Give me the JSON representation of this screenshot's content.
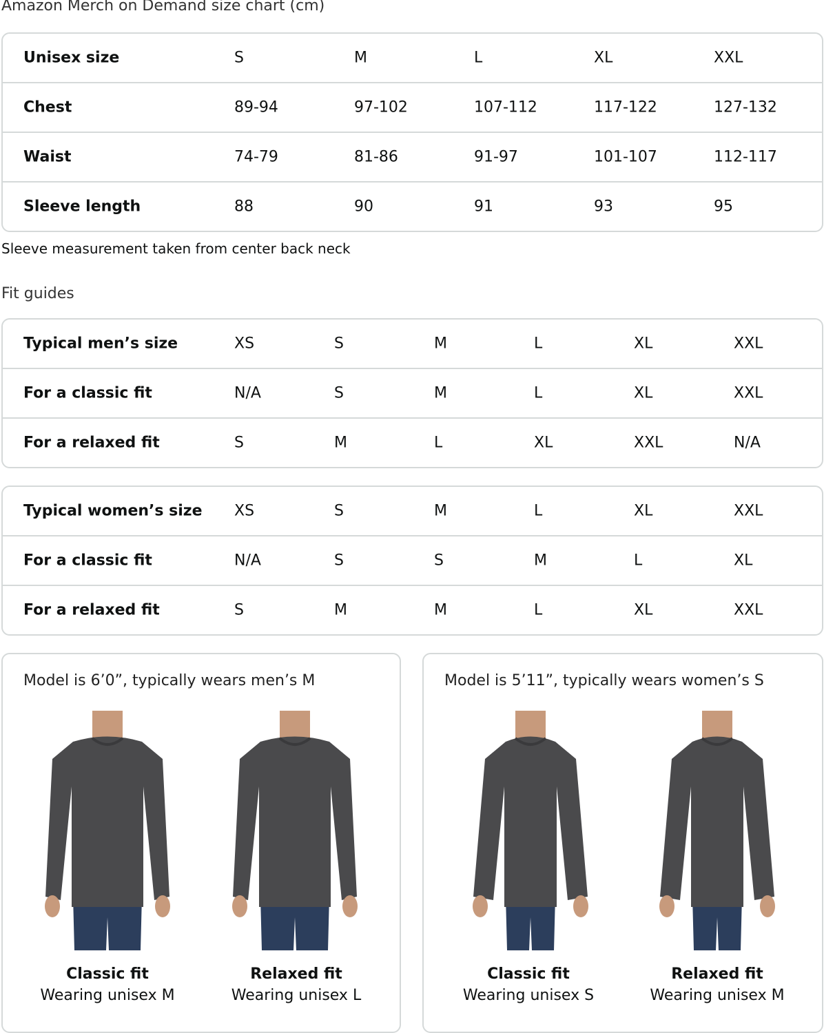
{
  "title": "Amazon Merch on Demand size chart (cm)",
  "size_chart": {
    "rows": [
      {
        "label": "Unisex size",
        "values": [
          "S",
          "M",
          "L",
          "XL",
          "XXL"
        ]
      },
      {
        "label": "Chest",
        "values": [
          "89-94",
          "97-102",
          "107-112",
          "117-122",
          "127-132"
        ]
      },
      {
        "label": "Waist",
        "values": [
          "74-79",
          "81-86",
          "91-97",
          "101-107",
          "112-117"
        ]
      },
      {
        "label": "Sleeve length",
        "values": [
          "88",
          "90",
          "91",
          "93",
          "95"
        ]
      }
    ]
  },
  "note": "Sleeve measurement taken from center back neck",
  "fit_guides_title": "Fit guides",
  "mens_fit": {
    "rows": [
      {
        "label": "Typical men’s size",
        "values": [
          "XS",
          "S",
          "M",
          "L",
          "XL",
          "XXL"
        ]
      },
      {
        "label": "For a classic fit",
        "values": [
          "N/A",
          "S",
          "M",
          "L",
          "XL",
          "XXL"
        ]
      },
      {
        "label": "For a relaxed fit",
        "values": [
          "S",
          "M",
          "L",
          "XL",
          "XXL",
          "N/A"
        ]
      }
    ]
  },
  "womens_fit": {
    "rows": [
      {
        "label": "Typical women’s size",
        "values": [
          "XS",
          "S",
          "M",
          "L",
          "XL",
          "XXL"
        ]
      },
      {
        "label": "For a classic fit",
        "values": [
          "N/A",
          "S",
          "S",
          "M",
          "L",
          "XL"
        ]
      },
      {
        "label": "For a relaxed fit",
        "values": [
          "S",
          "M",
          "M",
          "L",
          "XL",
          "XXL"
        ]
      }
    ]
  },
  "models": [
    {
      "title": "Model is 6’0”, typically wears men’s M",
      "photos": [
        {
          "fit": "Classic fit",
          "wearing": "Wearing unisex M"
        },
        {
          "fit": "Relaxed fit",
          "wearing": "Wearing unisex L"
        }
      ]
    },
    {
      "title": "Model is 5’11”, typically wears women’s S",
      "photos": [
        {
          "fit": "Classic fit",
          "wearing": "Wearing unisex S"
        },
        {
          "fit": "Relaxed fit",
          "wearing": "Wearing unisex M"
        }
      ]
    }
  ],
  "colors": {
    "border": "#d5d9d9",
    "shirt": "#4a4a4c",
    "jeans": "#2c3e5c"
  }
}
